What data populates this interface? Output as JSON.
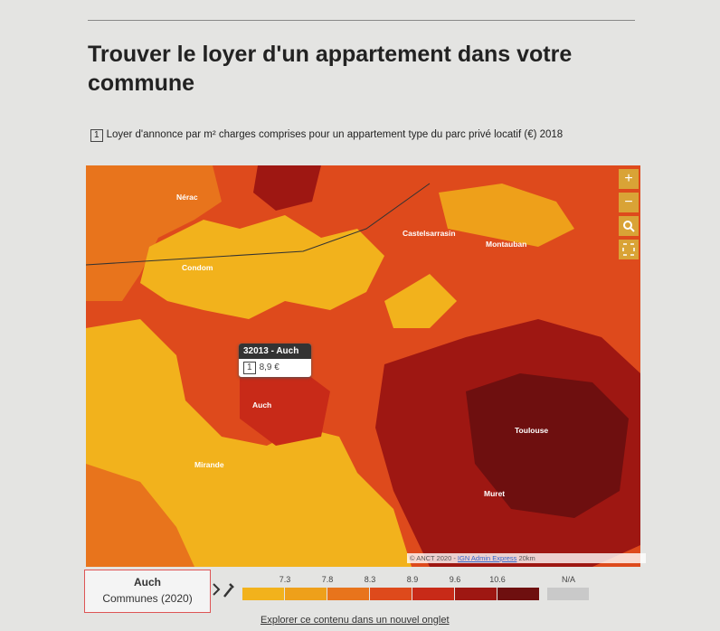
{
  "header": {
    "title": "Trouver le loyer d'un appartement dans votre commune"
  },
  "indicator": {
    "index": "1",
    "text": "Loyer d'annonce par m² charges comprises pour un appartement type du parc privé locatif (€) 2018"
  },
  "map": {
    "places": [
      "Nérac",
      "Condom",
      "Castelsarrasin",
      "Montauban",
      "Auch",
      "Mirande",
      "Toulouse",
      "Muret"
    ],
    "controls": [
      "+",
      "−"
    ],
    "tooltip": {
      "title": "32013 - Auch",
      "index": "1",
      "value": "8,9 €"
    },
    "attribution": {
      "source": "© ANCT 2020 - ",
      "link": "IGN Admin Express",
      "scale": "20km"
    }
  },
  "selector": {
    "name": "Auch",
    "level": "Communes (2020)"
  },
  "legend": {
    "breaks": [
      "7.3",
      "7.8",
      "8.3",
      "8.9",
      "9.6",
      "10.6"
    ],
    "na": "N/A",
    "colors": [
      "#f2b21c",
      "#eea01a",
      "#e8741c",
      "#de4a1c",
      "#c82a18",
      "#9e1712",
      "#6e0f0f",
      "#c9c9c9"
    ]
  },
  "footer": {
    "link": "Explorer ce contenu dans un nouvel onglet"
  }
}
